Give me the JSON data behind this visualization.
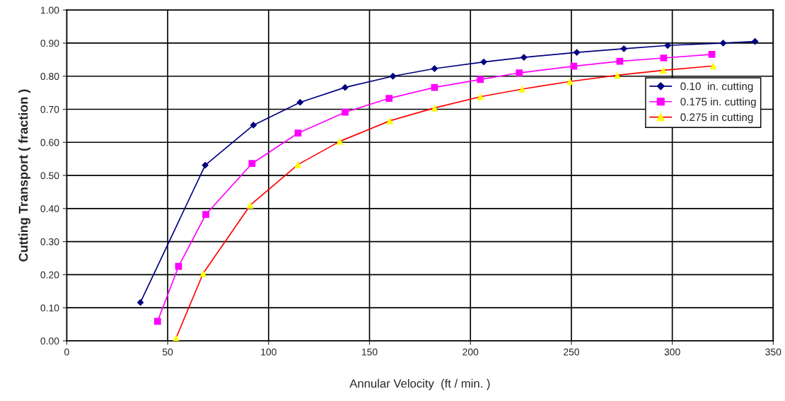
{
  "chart_data": {
    "type": "line",
    "xlabel": "Annular Velocity  (ft / min. )",
    "ylabel": "Cutting Transport ( fraction )",
    "xlim": [
      0,
      350
    ],
    "xticks": [
      0,
      50,
      100,
      150,
      200,
      250,
      300,
      350
    ],
    "ylim": [
      0,
      1
    ],
    "yticks": [
      {
        "value": 0,
        "label": "0.00"
      },
      {
        "value": 0.1,
        "label": "0.10"
      },
      {
        "value": 0.2,
        "label": "0.20"
      },
      {
        "value": 0.3,
        "label": "0.30"
      },
      {
        "value": 0.4,
        "label": "0.40"
      },
      {
        "value": 0.5,
        "label": "0.50"
      },
      {
        "value": 0.6,
        "label": "0.60"
      },
      {
        "value": 0.7,
        "label": "0.70"
      },
      {
        "value": 0.8,
        "label": "0.80"
      },
      {
        "value": 0.9,
        "label": "0.90"
      },
      {
        "value": 1,
        "label": "1.00"
      }
    ],
    "grid": true,
    "legend": "right",
    "series": [
      {
        "name": "0.10  in. cutting",
        "color": "#000080",
        "marker": "diamond",
        "x": [
          36.5,
          68.6,
          92.5,
          115.6,
          137.9,
          161.6,
          182.2,
          206.6,
          226.5,
          252.7,
          276,
          297.7,
          325.2,
          341
        ],
        "values": [
          0.116,
          0.531,
          0.652,
          0.721,
          0.766,
          0.8,
          0.823,
          0.843,
          0.857,
          0.872,
          0.883,
          0.893,
          0.9,
          0.905
        ]
      },
      {
        "name": "0.175 in. cutting",
        "color": "#ff00ff",
        "marker": "square",
        "x": [
          45,
          55.4,
          68.9,
          91.8,
          114.6,
          137.9,
          159.7,
          182.2,
          204.9,
          224.2,
          251.2,
          274,
          295.7,
          319.6
        ],
        "values": [
          0.059,
          0.225,
          0.382,
          0.536,
          0.628,
          0.691,
          0.733,
          0.766,
          0.79,
          0.81,
          0.83,
          0.845,
          0.855,
          0.866
        ]
      },
      {
        "name": "0.275 in cutting",
        "color": "#ff0000",
        "marker": "triangle",
        "colors": [
          "#ffff00",
          "#ffff00",
          "#ffff00",
          "#ffff00",
          "#ffff00",
          "#ffff00",
          "#ffff00",
          "#ffff00",
          "#ffff00",
          "#ffff00",
          "#ffff00",
          "#ffff00",
          "#ffff00"
        ],
        "x": [
          54.2,
          67.6,
          90.9,
          114.6,
          135.3,
          160,
          182.2,
          204.9,
          225.6,
          249.3,
          272.8,
          295.6,
          320.3
        ],
        "values": [
          0.009,
          0.204,
          0.41,
          0.533,
          0.603,
          0.665,
          0.704,
          0.738,
          0.761,
          0.784,
          0.803,
          0.818,
          0.831
        ]
      }
    ]
  }
}
